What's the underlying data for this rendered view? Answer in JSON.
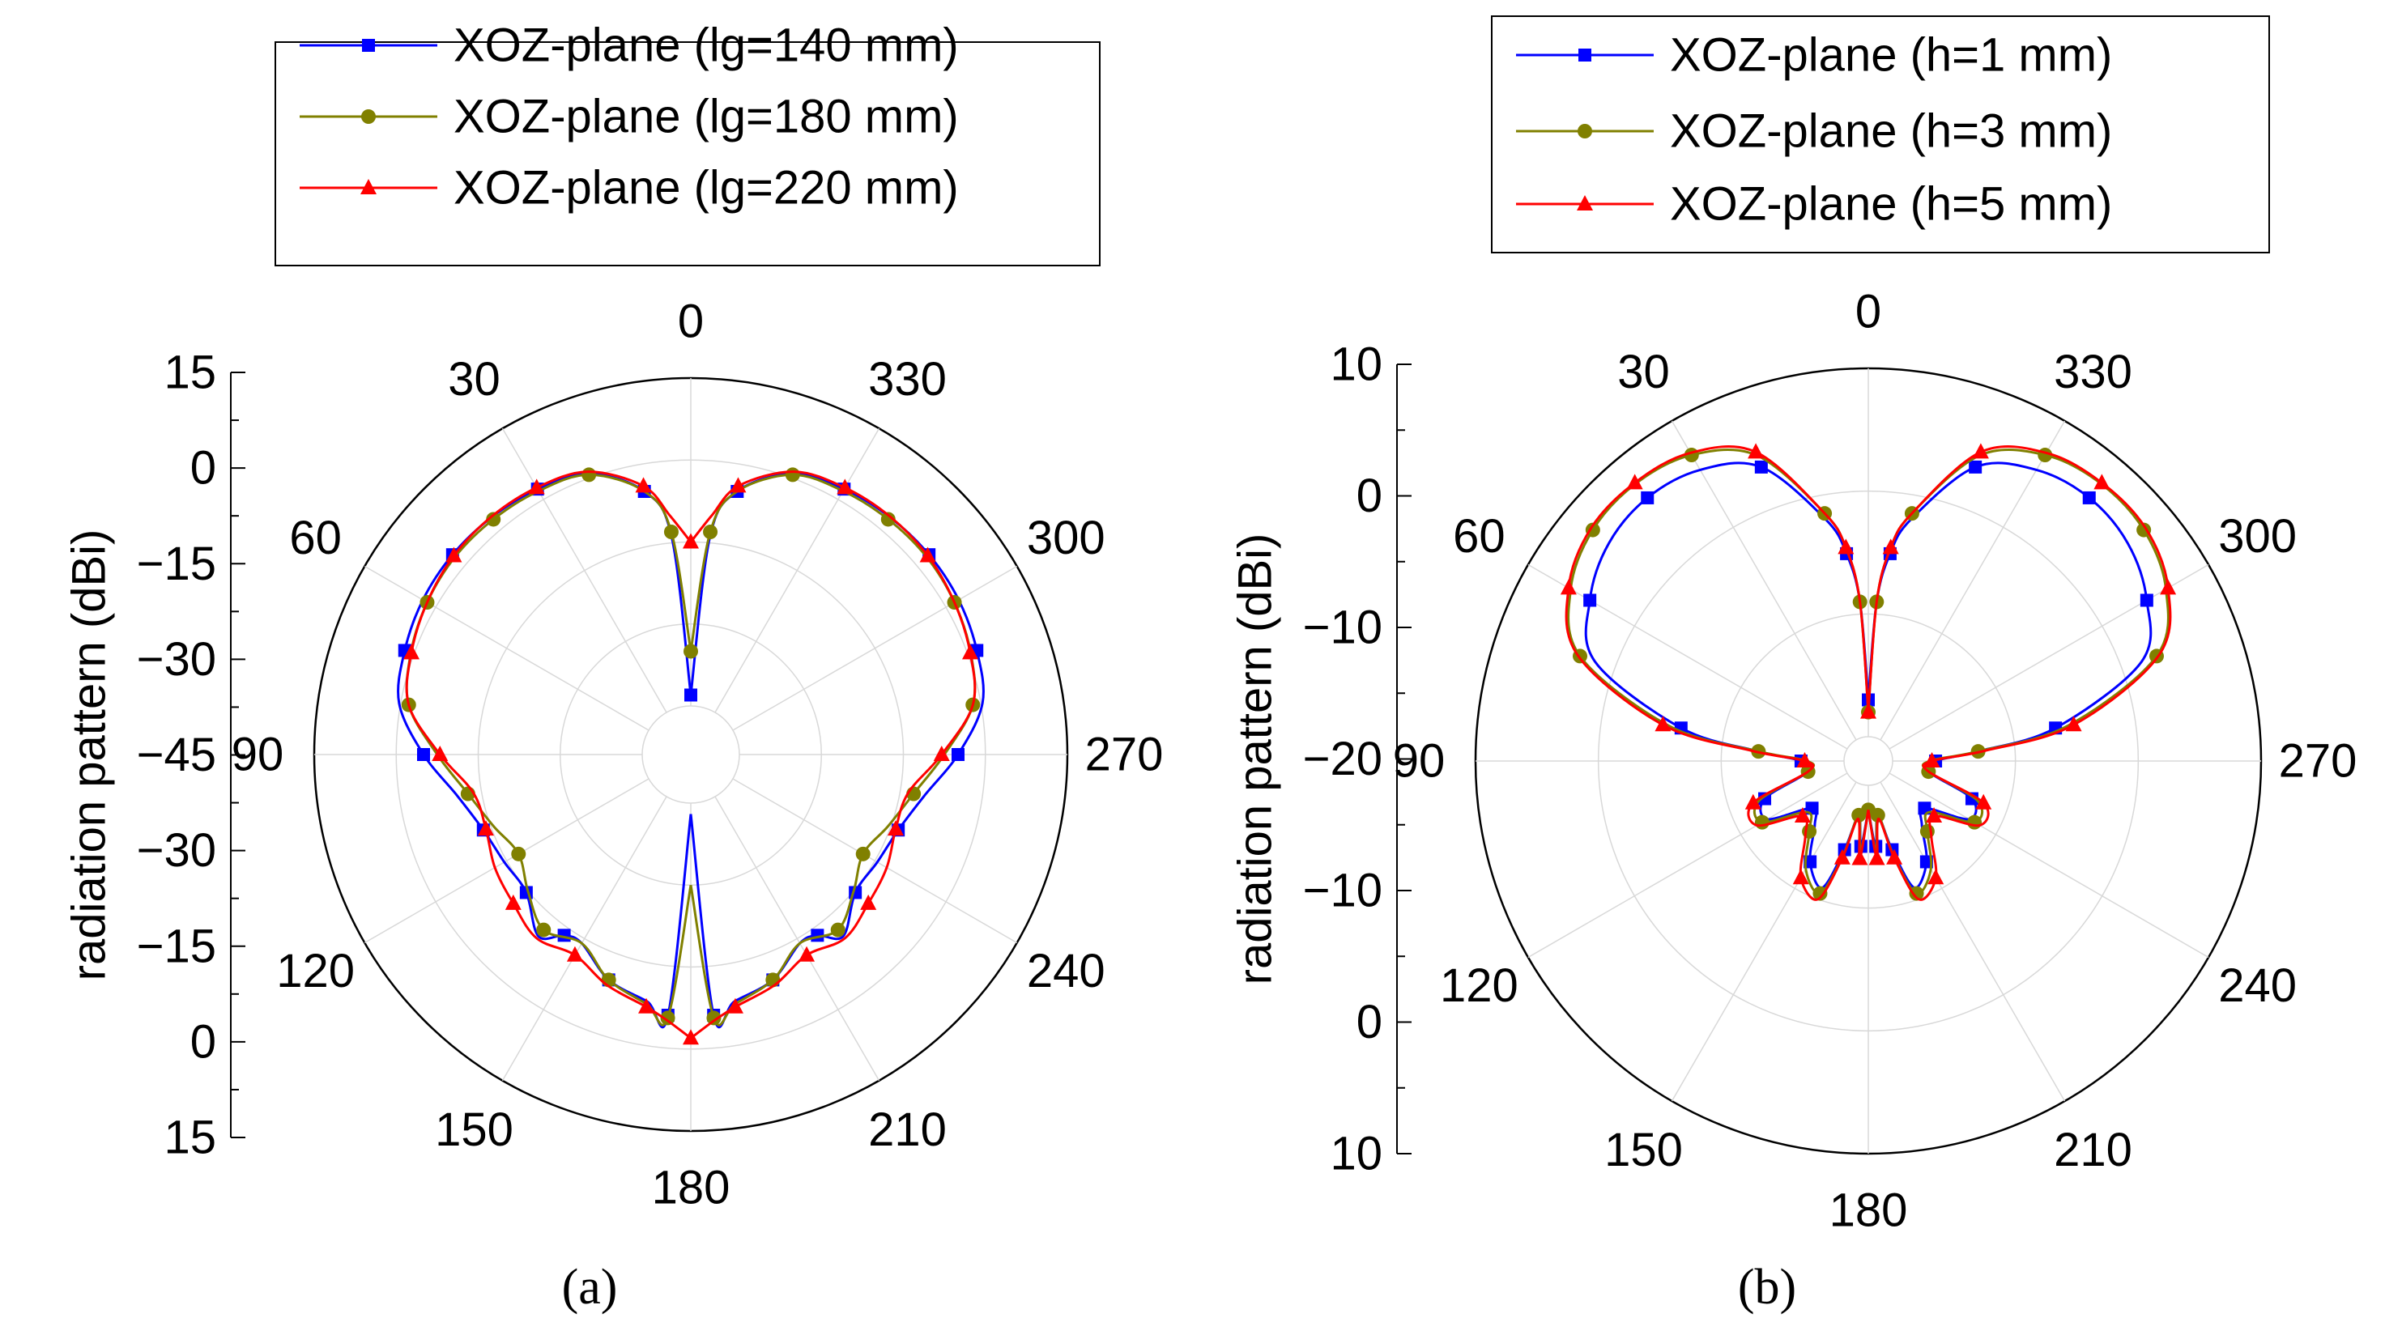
{
  "chart_data": [
    {
      "type": "polar",
      "panel_label": "(a)",
      "radial_axis_label": "radiation pattern (dBi)",
      "radial_tick_labels": [
        "15",
        "0",
        "−15",
        "−30",
        "−45",
        "−30",
        "−15",
        "0",
        "15"
      ],
      "rlim": [
        -45,
        15
      ],
      "angle_labels": [
        "0",
        "30",
        "60",
        "90",
        "120",
        "150",
        "180",
        "210",
        "240",
        "270",
        "300",
        "330"
      ],
      "angular_direction": "counterclockwise",
      "zero_location": "top",
      "grid": true,
      "legend_position": "top-center",
      "series": [
        {
          "name": "XOZ-plane (lg=140 mm)",
          "color": "#0000ff",
          "marker": "square",
          "theta": [
            0,
            5,
            10,
            20,
            30,
            40,
            50,
            60,
            70,
            80,
            90,
            100,
            110,
            120,
            130,
            140,
            145,
            150,
            160,
            170,
            175,
            180
          ],
          "values": [
            -43,
            -14,
            -5,
            0.8,
            2.2,
            2.8,
            3.0,
            2.7,
            1.8,
            0.3,
            -5,
            -10.5,
            -13.5,
            -14.5,
            -14.6,
            -10.5,
            -13.5,
            -14,
            -10,
            -8,
            -6,
            -43
          ]
        },
        {
          "name": "XOZ-plane (lg=180 mm)",
          "color": "#808000",
          "marker": "circle",
          "theta": [
            0,
            5,
            10,
            20,
            30,
            40,
            50,
            60,
            70,
            80,
            90,
            100,
            110,
            120,
            130,
            140,
            150,
            160,
            170,
            175,
            180
          ],
          "values": [
            -35,
            -13,
            -5,
            0.6,
            1.8,
            2.3,
            2.4,
            1.8,
            0.6,
            -1.5,
            -7.5,
            -12.5,
            -15.5,
            -17.5,
            -15,
            -12,
            -14,
            -10,
            -7.5,
            -5.5,
            -30
          ]
        },
        {
          "name": "XOZ-plane (lg=220 mm)",
          "color": "#ff0000",
          "marker": "triangle",
          "theta": [
            0,
            5,
            10,
            20,
            30,
            40,
            50,
            60,
            70,
            80,
            90,
            100,
            110,
            120,
            130,
            140,
            150,
            160,
            170,
            175,
            180
          ],
          "values": [
            -15,
            -10,
            -4,
            1.2,
            2.5,
            2.9,
            2.7,
            1.8,
            0.5,
            -1.5,
            -8,
            -13.5,
            -14,
            -12.5,
            -11.5,
            -10,
            -11.5,
            -9,
            -7,
            -5,
            -2
          ]
        }
      ]
    },
    {
      "type": "polar",
      "panel_label": "(b)",
      "radial_axis_label": "radiation pattern (dBi)",
      "radial_tick_labels": [
        "10",
        "0",
        "−10",
        "−20",
        "−10",
        "0",
        "10"
      ],
      "rlim": [
        -20,
        10
      ],
      "angle_labels": [
        "0",
        "30",
        "60",
        "90",
        "120",
        "150",
        "180",
        "210",
        "240",
        "270",
        "300",
        "330"
      ],
      "angular_direction": "counterclockwise",
      "zero_location": "top",
      "grid": true,
      "legend_position": "top-center",
      "series": [
        {
          "name": "XOZ-plane (h=1 mm)",
          "color": "#0000ff",
          "marker": "square",
          "theta": [
            0,
            3,
            6,
            10,
            20,
            30,
            40,
            50,
            60,
            70,
            80,
            85,
            90,
            100,
            110,
            120,
            130,
            140,
            150,
            160,
            165,
            170,
            175,
            180
          ],
          "values": [
            -17,
            -9,
            -5,
            -2,
            3.5,
            5.4,
            6.0,
            5.6,
            4.2,
            1.7,
            -6.5,
            -13,
            -16.5,
            -17,
            -13,
            -12.5,
            -16,
            -15.2,
            -12.5,
            -11,
            -14.5,
            -17.5,
            -15,
            -18
          ]
        },
        {
          "name": "XOZ-plane (h=3 mm)",
          "color": "#808000",
          "marker": "circle",
          "theta": [
            0,
            3,
            6,
            10,
            20,
            30,
            40,
            50,
            60,
            70,
            80,
            85,
            90,
            100,
            110,
            120,
            130,
            140,
            150,
            160,
            165,
            170,
            175,
            180
          ],
          "values": [
            -18,
            -9,
            -4.5,
            -1.5,
            4.5,
            6.8,
            7.5,
            7.3,
            6.0,
            3.0,
            -5.5,
            -13,
            -17,
            -17,
            -12.5,
            -12,
            -15.5,
            -14.5,
            -11.8,
            -10.5,
            -14,
            -17.5,
            -14.5,
            -18
          ]
        },
        {
          "name": "XOZ-plane (h=5 mm)",
          "color": "#ff0000",
          "marker": "triangle",
          "theta": [
            0,
            3,
            6,
            10,
            20,
            30,
            40,
            50,
            60,
            70,
            80,
            85,
            90,
            100,
            110,
            120,
            130,
            140,
            150,
            160,
            165,
            170,
            175,
            180
          ],
          "values": [
            -18,
            -9,
            -4.5,
            -1.5,
            4.8,
            7.0,
            7.6,
            7.5,
            6.2,
            3.2,
            -5,
            -12.5,
            -16.8,
            -17,
            -12,
            -11.5,
            -15,
            -14,
            -11,
            -10,
            -13.8,
            -17.2,
            -14,
            -18
          ]
        }
      ]
    }
  ]
}
